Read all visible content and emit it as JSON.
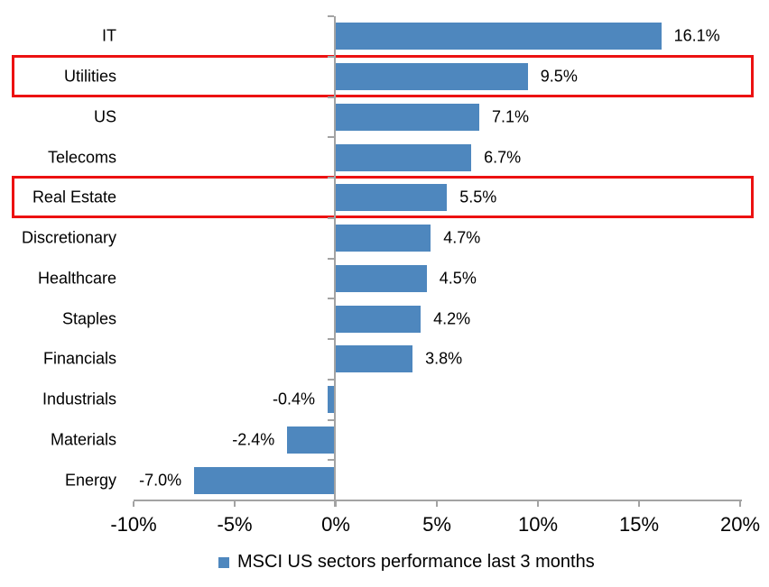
{
  "chart_data": {
    "type": "bar",
    "orientation": "horizontal",
    "title": "",
    "categories": [
      "IT",
      "Utilities",
      "US",
      "Telecoms",
      "Real Estate",
      "Discretionary",
      "Healthcare",
      "Staples",
      "Financials",
      "Industrials",
      "Materials",
      "Energy"
    ],
    "values": [
      16.1,
      9.5,
      7.1,
      6.7,
      5.5,
      4.7,
      4.5,
      4.2,
      3.8,
      -0.4,
      -2.4,
      -7.0
    ],
    "value_labels": [
      "16.1%",
      "9.5%",
      "7.1%",
      "6.7%",
      "5.5%",
      "4.7%",
      "4.5%",
      "4.2%",
      "3.8%",
      "-0.4%",
      "-2.4%",
      "-7.0%"
    ],
    "x_axis": {
      "min": -10,
      "max": 20,
      "ticks": [
        {
          "value": -10,
          "label": "-10%"
        },
        {
          "value": -5,
          "label": "-5%"
        },
        {
          "value": 0,
          "label": "0%"
        },
        {
          "value": 5,
          "label": "5%"
        },
        {
          "value": 10,
          "label": "10%"
        },
        {
          "value": 15,
          "label": "15%"
        },
        {
          "value": 20,
          "label": "20%"
        }
      ]
    },
    "legend": {
      "label": "MSCI US sectors performance last 3 months",
      "position": "bottom"
    },
    "bar_color": "#4e87be",
    "axis_color": "#a3a3a3",
    "text_color": "#000000",
    "highlighted_categories": [
      "Utilities",
      "Real Estate"
    ],
    "highlight_border_color": "#ec1111",
    "grid": false
  }
}
